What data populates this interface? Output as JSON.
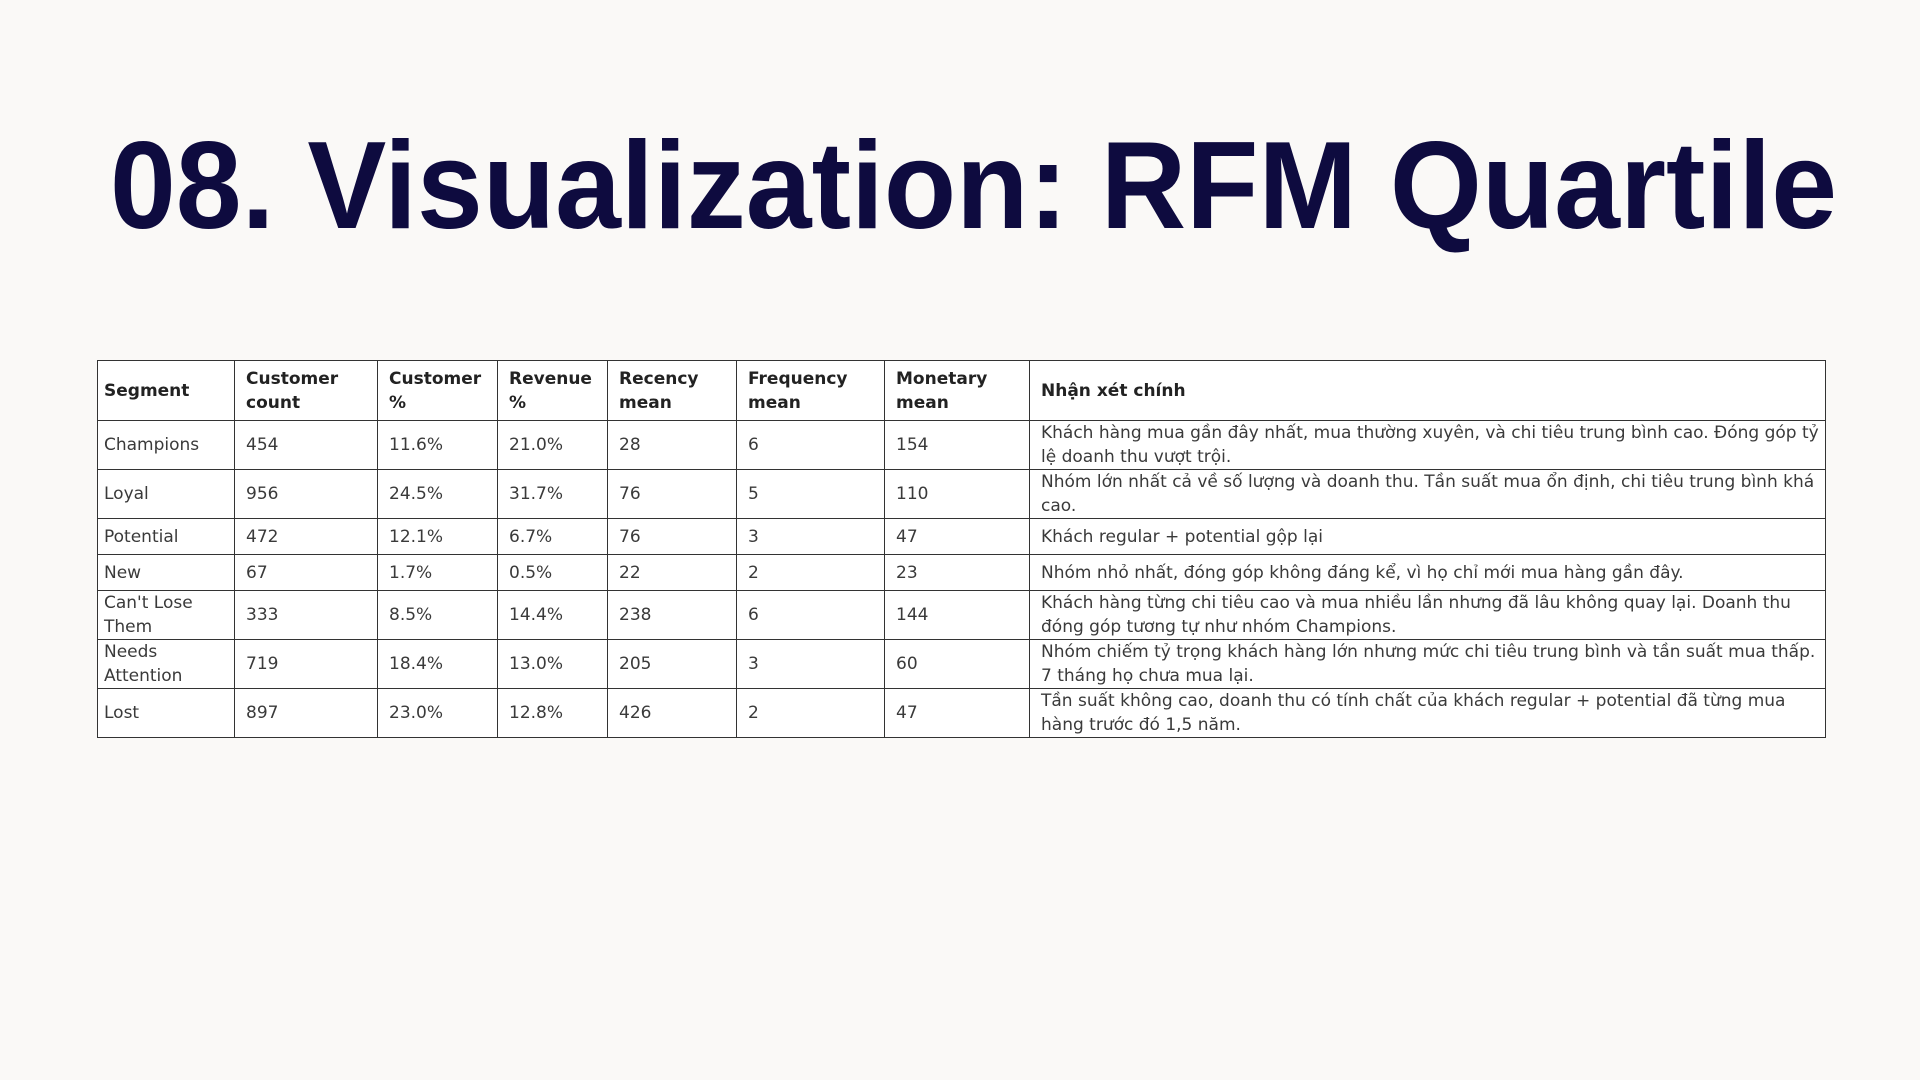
{
  "title": "08. Visualization: RFM Quartile",
  "table": {
    "header": [
      "Segment",
      "Customer count",
      "Customer %",
      "Revenue %",
      "Recency mean",
      "Frequency mean",
      "Monetary mean",
      "Nhận xét chính"
    ],
    "rows": [
      [
        "Champions",
        "454",
        "11.6%",
        "21.0%",
        "28",
        "6",
        "154",
        "Khách hàng mua gần đây nhất, mua thường xuyên, và chi tiêu trung bình cao. Đóng góp tỷ lệ doanh thu vượt trội."
      ],
      [
        "Loyal",
        "956",
        "24.5%",
        "31.7%",
        "76",
        "5",
        "110",
        "Nhóm lớn nhất cả về số lượng và doanh thu. Tần suất mua ổn định, chi tiêu trung bình khá cao."
      ],
      [
        "Potential",
        "472",
        "12.1%",
        "6.7%",
        "76",
        "3",
        "47",
        "Khách regular + potential gộp lại"
      ],
      [
        "New",
        "67",
        "1.7%",
        "0.5%",
        "22",
        "2",
        "23",
        "Nhóm nhỏ nhất, đóng góp không đáng kể, vì họ chỉ mới mua hàng gần đây."
      ],
      [
        "Can't Lose Them",
        "333",
        "8.5%",
        "14.4%",
        "238",
        "6",
        "144",
        "Khách hàng từng chi tiêu cao và mua nhiều lần nhưng đã lâu không quay lại. Doanh thu đóng góp tương tự như nhóm Champions."
      ],
      [
        "Needs Attention",
        "719",
        "18.4%",
        "13.0%",
        "205",
        "3",
        "60",
        "Nhóm chiếm tỷ trọng khách hàng lớn nhưng mức chi tiêu trung bình và tần suất mua thấp. 7 tháng họ chưa mua lại."
      ],
      [
        "Lost",
        "897",
        "23.0%",
        "12.8%",
        "426",
        "2",
        "47",
        "Tần suất không cao, doanh thu có tính chất của khách regular + potential đã từng mua hàng trước đó 1,5 năm."
      ]
    ]
  }
}
